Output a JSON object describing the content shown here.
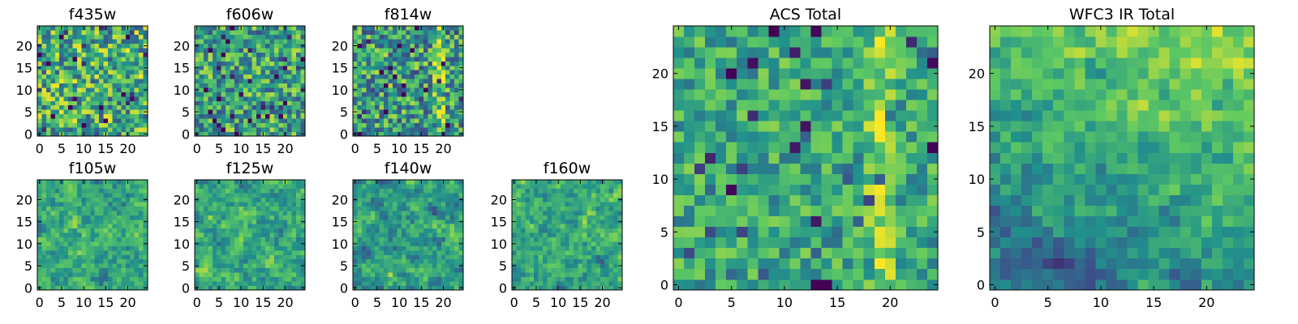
{
  "figure": {
    "description_free": true
  },
  "colormap": {
    "name": "viridis",
    "stops": [
      "#440154",
      "#3b528b",
      "#21918c",
      "#5ec962",
      "#fde725"
    ]
  },
  "chart_data": [
    {
      "id": "f435w",
      "type": "heatmap",
      "title": "f435w",
      "grid": [
        25,
        25
      ],
      "xticks": [
        0,
        5,
        10,
        15,
        20
      ],
      "yticks": [
        0,
        5,
        10,
        15,
        20
      ],
      "xlim": [
        -0.5,
        24.5
      ],
      "ylim": [
        -0.5,
        24.5
      ],
      "value_range": [
        0,
        1
      ],
      "pattern": {
        "seed": 11,
        "mean": 0.62,
        "noise": 0.36,
        "smooth": 0,
        "ridge_x": -1
      }
    },
    {
      "id": "f606w",
      "type": "heatmap",
      "title": "f606w",
      "grid": [
        25,
        25
      ],
      "xticks": [
        0,
        5,
        10,
        15,
        20
      ],
      "yticks": [
        0,
        5,
        10,
        15,
        20
      ],
      "xlim": [
        -0.5,
        24.5
      ],
      "ylim": [
        -0.5,
        24.5
      ],
      "value_range": [
        0,
        1
      ],
      "pattern": {
        "seed": 23,
        "mean": 0.58,
        "noise": 0.32,
        "smooth": 0,
        "ridge_x": -1
      }
    },
    {
      "id": "f814w",
      "type": "heatmap",
      "title": "f814w",
      "grid": [
        25,
        25
      ],
      "xticks": [
        0,
        5,
        10,
        15,
        20
      ],
      "yticks": [
        0,
        5,
        10,
        15,
        20
      ],
      "xlim": [
        -0.5,
        24.5
      ],
      "ylim": [
        -0.5,
        24.5
      ],
      "value_range": [
        0,
        1
      ],
      "pattern": {
        "seed": 37,
        "mean": 0.55,
        "noise": 0.34,
        "smooth": 0,
        "ridge_x": 19
      }
    },
    {
      "id": "f105w",
      "type": "heatmap",
      "title": "f105w",
      "grid": [
        25,
        25
      ],
      "xticks": [
        0,
        5,
        10,
        15,
        20
      ],
      "yticks": [
        0,
        5,
        10,
        15,
        20
      ],
      "xlim": [
        -0.5,
        24.5
      ],
      "ylim": [
        -0.5,
        24.5
      ],
      "value_range": [
        0,
        1
      ],
      "pattern": {
        "seed": 41,
        "mean": 0.62,
        "noise": 0.3,
        "smooth": 1,
        "ridge_x": -1
      }
    },
    {
      "id": "f125w",
      "type": "heatmap",
      "title": "f125w",
      "grid": [
        25,
        25
      ],
      "xticks": [
        0,
        5,
        10,
        15,
        20
      ],
      "yticks": [
        0,
        5,
        10,
        15,
        20
      ],
      "xlim": [
        -0.5,
        24.5
      ],
      "ylim": [
        -0.5,
        24.5
      ],
      "value_range": [
        0,
        1
      ],
      "pattern": {
        "seed": 53,
        "mean": 0.62,
        "noise": 0.3,
        "smooth": 1,
        "ridge_x": -1
      }
    },
    {
      "id": "f140w",
      "type": "heatmap",
      "title": "f140w",
      "grid": [
        25,
        25
      ],
      "xticks": [
        0,
        5,
        10,
        15,
        20
      ],
      "yticks": [
        0,
        5,
        10,
        15,
        20
      ],
      "xlim": [
        -0.5,
        24.5
      ],
      "ylim": [
        -0.5,
        24.5
      ],
      "value_range": [
        0,
        1
      ],
      "pattern": {
        "seed": 67,
        "mean": 0.6,
        "noise": 0.32,
        "smooth": 1,
        "ridge_x": -1
      }
    },
    {
      "id": "f160w",
      "type": "heatmap",
      "title": "f160w",
      "grid": [
        25,
        25
      ],
      "xticks": [
        0,
        5,
        10,
        15,
        20
      ],
      "yticks": [
        0,
        5,
        10,
        15,
        20
      ],
      "xlim": [
        -0.5,
        24.5
      ],
      "ylim": [
        -0.5,
        24.5
      ],
      "value_range": [
        0,
        1
      ],
      "pattern": {
        "seed": 79,
        "mean": 0.62,
        "noise": 0.32,
        "smooth": 1,
        "ridge_x": -1
      }
    },
    {
      "id": "acs-total",
      "type": "heatmap",
      "title": "ACS Total",
      "grid": [
        25,
        25
      ],
      "xticks": [
        0,
        5,
        10,
        15,
        20
      ],
      "yticks": [
        0,
        5,
        10,
        15,
        20
      ],
      "xlim": [
        -0.5,
        24.5
      ],
      "ylim": [
        -0.5,
        24.5
      ],
      "value_range": [
        0,
        1
      ],
      "pattern": {
        "seed": 97,
        "mean": 0.6,
        "noise": 0.22,
        "smooth": 0,
        "ridge_x": 19
      }
    },
    {
      "id": "wfc3-ir-total",
      "type": "heatmap",
      "title": "WFC3 IR Total",
      "grid": [
        25,
        25
      ],
      "xticks": [
        0,
        5,
        10,
        15,
        20
      ],
      "yticks": [
        0,
        5,
        10,
        15,
        20
      ],
      "xlim": [
        -0.5,
        24.5
      ],
      "ylim": [
        -0.5,
        24.5
      ],
      "value_range": [
        0,
        1
      ],
      "pattern": {
        "seed": 113,
        "mean": 0.62,
        "noise": 0.2,
        "smooth": 1,
        "ridge_x": -1,
        "gradient": 0.35
      }
    }
  ]
}
